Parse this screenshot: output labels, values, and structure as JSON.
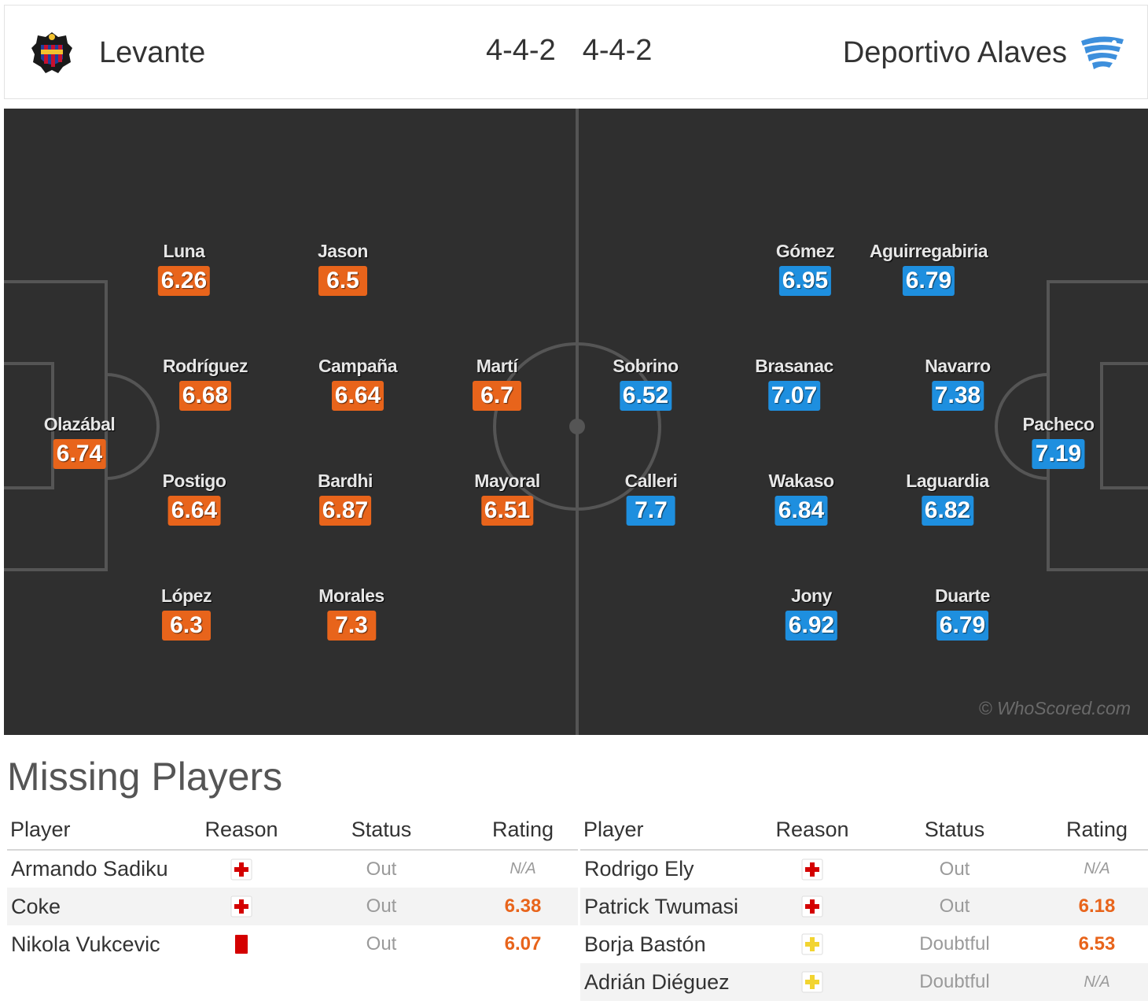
{
  "header": {
    "home_team": "Levante",
    "home_formation": "4-4-2",
    "away_formation": "4-4-2",
    "away_team": "Deportivo Alaves",
    "home_crest_icon": "levante-crest-icon",
    "away_crest_icon": "alaves-crest-icon"
  },
  "colors": {
    "home": "#e8641b",
    "away": "#1e8fdf",
    "pitch": "#2f2f2f",
    "lines": "#555555"
  },
  "pitch": {
    "home_players": [
      {
        "name": "Olazábal",
        "rating": "6.74"
      },
      {
        "name": "Luna",
        "rating": "6.26"
      },
      {
        "name": "Rodríguez",
        "rating": "6.68"
      },
      {
        "name": "Postigo",
        "rating": "6.64"
      },
      {
        "name": "López",
        "rating": "6.3"
      },
      {
        "name": "Jason",
        "rating": "6.5"
      },
      {
        "name": "Campaña",
        "rating": "6.64"
      },
      {
        "name": "Bardhi",
        "rating": "6.87"
      },
      {
        "name": "Morales",
        "rating": "7.3"
      },
      {
        "name": "Martí",
        "rating": "6.7"
      },
      {
        "name": "Mayoral",
        "rating": "6.51"
      }
    ],
    "away_players": [
      {
        "name": "Sobrino",
        "rating": "6.52"
      },
      {
        "name": "Calleri",
        "rating": "7.7"
      },
      {
        "name": "Gómez",
        "rating": "6.95"
      },
      {
        "name": "Brasanac",
        "rating": "7.07"
      },
      {
        "name": "Wakaso",
        "rating": "6.84"
      },
      {
        "name": "Jony",
        "rating": "6.92"
      },
      {
        "name": "Aguirregabiria",
        "rating": "6.79"
      },
      {
        "name": "Navarro",
        "rating": "7.38"
      },
      {
        "name": "Laguardia",
        "rating": "6.82"
      },
      {
        "name": "Duarte",
        "rating": "6.79"
      },
      {
        "name": "Pacheco",
        "rating": "7.19"
      }
    ],
    "watermark": "© WhoScored.com"
  },
  "missing": {
    "title": "Missing Players",
    "columns": [
      "Player",
      "Reason",
      "Status",
      "Rating"
    ],
    "home": [
      {
        "player": "Armando Sadiku",
        "reason_icon": "injury-icon",
        "status": "Out",
        "rating": "N/A"
      },
      {
        "player": "Coke",
        "reason_icon": "injury-icon",
        "status": "Out",
        "rating": "6.38"
      },
      {
        "player": "Nikola Vukcevic",
        "reason_icon": "red-card-icon",
        "status": "Out",
        "rating": "6.07"
      }
    ],
    "away": [
      {
        "player": "Rodrigo Ely",
        "reason_icon": "injury-icon",
        "status": "Out",
        "rating": "N/A"
      },
      {
        "player": "Patrick Twumasi",
        "reason_icon": "injury-icon",
        "status": "Out",
        "rating": "6.18"
      },
      {
        "player": "Borja Bastón",
        "reason_icon": "doubtful-injury-icon",
        "status": "Doubtful",
        "rating": "6.53"
      },
      {
        "player": "Adrián Diéguez",
        "reason_icon": "doubtful-injury-icon",
        "status": "Doubtful",
        "rating": "N/A"
      }
    ]
  }
}
